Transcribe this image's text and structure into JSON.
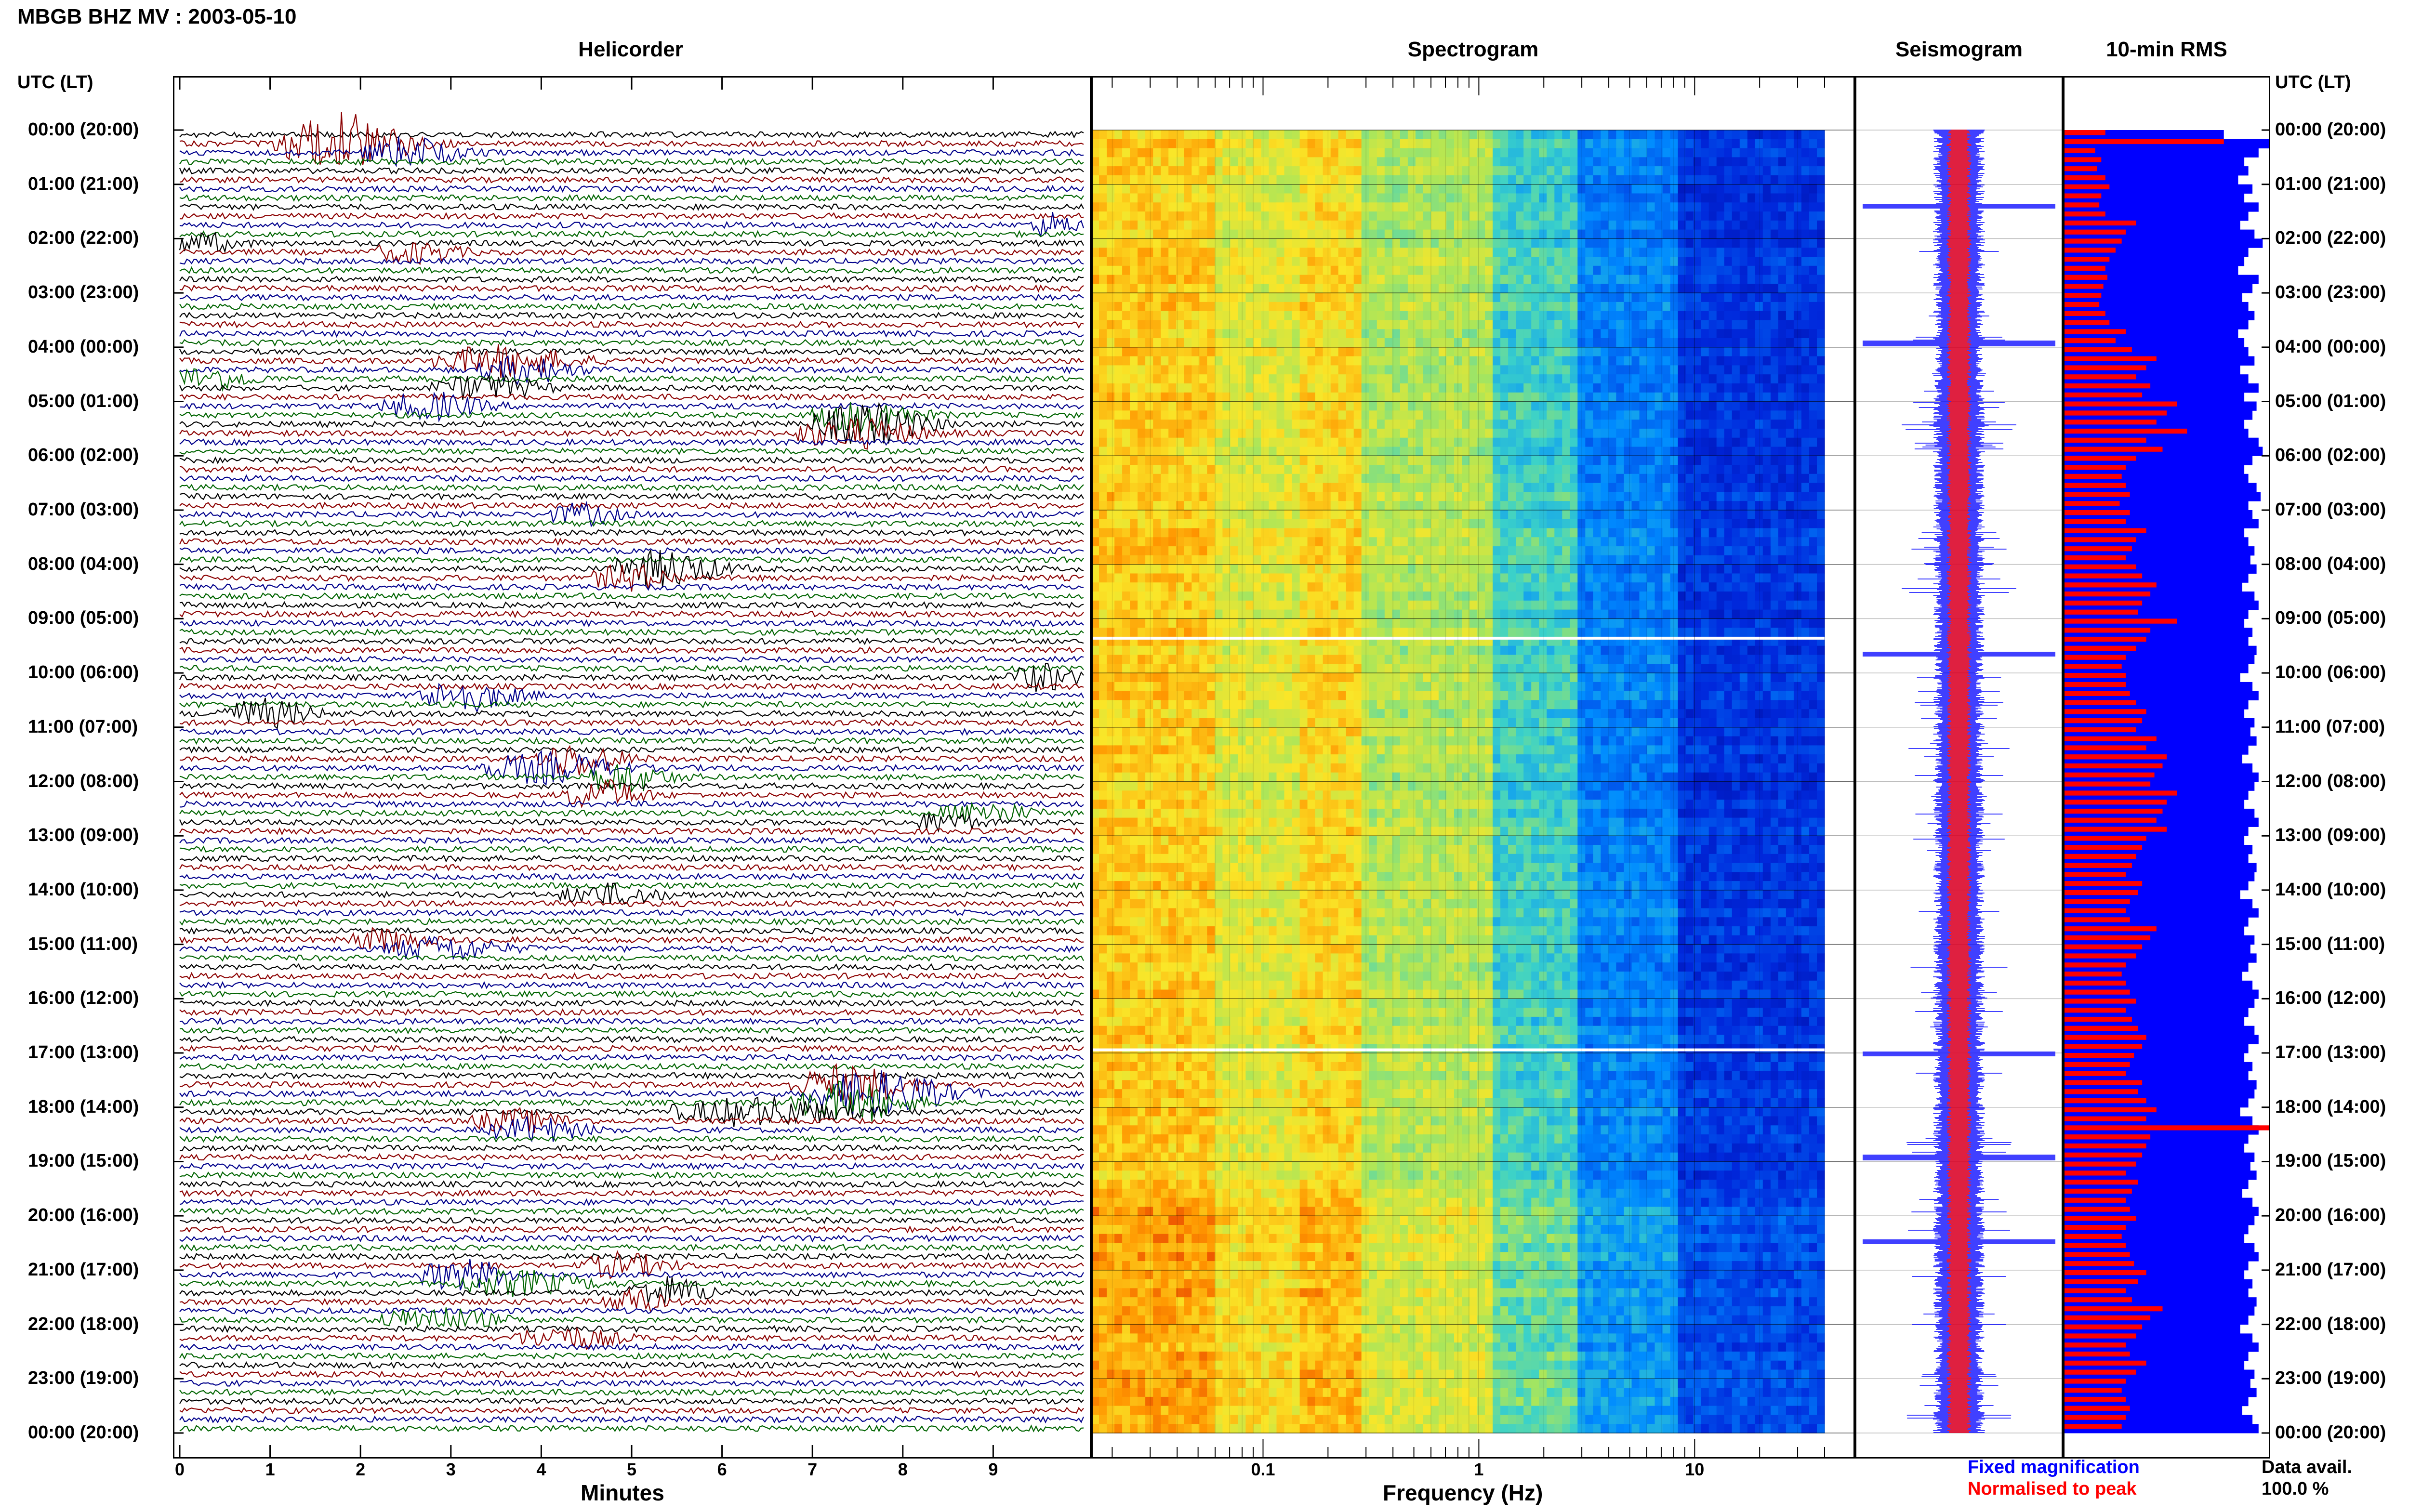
{
  "header": {
    "title": "MBGB BHZ MV : 2003-05-10"
  },
  "panels": {
    "helicorder": "Helicorder",
    "spectrogram": "Spectrogram",
    "seismogram": "Seismogram",
    "rms": "10-min RMS"
  },
  "time_axis": {
    "title_left": "UTC (LT)",
    "title_right": "UTC (LT)",
    "labels": [
      "00:00 (20:00)",
      "01:00 (21:00)",
      "02:00 (22:00)",
      "03:00 (23:00)",
      "04:00 (00:00)",
      "05:00 (01:00)",
      "06:00 (02:00)",
      "07:00 (03:00)",
      "08:00 (04:00)",
      "09:00 (05:00)",
      "10:00 (06:00)",
      "11:00 (07:00)",
      "12:00 (08:00)",
      "13:00 (09:00)",
      "14:00 (10:00)",
      "15:00 (11:00)",
      "16:00 (12:00)",
      "17:00 (13:00)",
      "18:00 (14:00)",
      "19:00 (15:00)",
      "20:00 (16:00)",
      "21:00 (17:00)",
      "22:00 (18:00)",
      "23:00 (19:00)",
      "00:00 (20:00)"
    ]
  },
  "helicorder_axis": {
    "xlabel": "Minutes",
    "ticks": [
      "0",
      "1",
      "2",
      "3",
      "4",
      "5",
      "6",
      "7",
      "8",
      "9"
    ],
    "trace_colors": [
      "#000000",
      "#8b0000",
      "#00008b",
      "#006400"
    ]
  },
  "spectrogram_axis": {
    "xlabel": "Frequency (Hz)",
    "ticks": [
      "0.1",
      "1",
      "10"
    ],
    "scale": "log"
  },
  "legend": {
    "fixed": "Fixed magnification",
    "normalised": "Normalised to peak",
    "fixed_color": "#0000ff",
    "normalised_color": "#ff0000"
  },
  "availability": {
    "label": "Data avail.",
    "value": "100.0 %"
  },
  "chart_data": {
    "type": "heatmap",
    "title": "MBGB BHZ MV : 2003-05-10",
    "rms_10min": {
      "interval_minutes": 10,
      "series": [
        {
          "name": "Fixed magnification",
          "color": "#0000ff",
          "values": [
            0.78,
            1.0,
            0.95,
            0.88,
            0.9,
            0.85,
            0.92,
            0.88,
            0.95,
            0.9,
            0.86,
            0.93,
            0.97,
            0.9,
            0.88,
            0.85,
            0.95,
            0.92,
            0.87,
            0.9,
            0.93,
            0.9,
            0.85,
            0.88,
            0.9,
            0.93,
            0.86,
            0.9,
            0.95,
            0.88,
            0.94,
            0.92,
            0.88,
            0.9,
            0.95,
            0.97,
            0.92,
            0.88,
            0.9,
            0.94,
            0.96,
            0.9,
            0.92,
            0.95,
            0.88,
            0.9,
            0.93,
            0.91,
            0.94,
            0.9,
            0.87,
            0.93,
            0.95,
            0.9,
            0.88,
            0.92,
            0.9,
            0.94,
            0.93,
            0.9,
            0.86,
            0.92,
            0.95,
            0.9,
            0.88,
            0.93,
            0.91,
            0.94,
            0.9,
            0.87,
            0.92,
            0.95,
            0.93,
            0.9,
            0.88,
            0.93,
            0.95,
            0.9,
            0.88,
            0.92,
            0.9,
            0.94,
            0.93,
            0.9,
            0.86,
            0.92,
            0.95,
            0.9,
            0.88,
            0.93,
            0.91,
            0.94,
            0.9,
            0.87,
            0.92,
            0.95,
            0.93,
            0.9,
            0.88,
            0.93,
            0.95,
            0.9,
            0.88,
            0.92,
            0.9,
            0.94,
            0.93,
            0.9,
            0.86,
            0.92,
            0.95,
            0.9,
            0.88,
            0.93,
            0.91,
            0.94,
            0.9,
            0.87,
            0.92,
            0.95,
            0.93,
            0.9,
            0.88,
            0.93,
            0.95,
            0.9,
            0.88,
            0.92,
            0.9,
            0.94,
            0.93,
            0.9,
            0.86,
            0.92,
            0.95,
            0.9,
            0.88,
            0.93,
            0.91,
            0.94,
            0.9,
            0.87,
            0.92,
            0.95
          ]
        },
        {
          "name": "Normalised to peak",
          "color": "#ff0000",
          "values": [
            0.2,
            0.78,
            0.15,
            0.18,
            0.16,
            0.2,
            0.22,
            0.18,
            0.17,
            0.2,
            0.35,
            0.3,
            0.28,
            0.25,
            0.22,
            0.2,
            0.21,
            0.19,
            0.18,
            0.17,
            0.2,
            0.22,
            0.3,
            0.25,
            0.33,
            0.45,
            0.4,
            0.35,
            0.42,
            0.38,
            0.55,
            0.5,
            0.45,
            0.6,
            0.4,
            0.48,
            0.35,
            0.3,
            0.28,
            0.3,
            0.32,
            0.27,
            0.32,
            0.3,
            0.4,
            0.35,
            0.33,
            0.3,
            0.35,
            0.38,
            0.45,
            0.42,
            0.38,
            0.36,
            0.55,
            0.42,
            0.4,
            0.35,
            0.3,
            0.28,
            0.3,
            0.3,
            0.32,
            0.35,
            0.4,
            0.38,
            0.35,
            0.45,
            0.4,
            0.5,
            0.48,
            0.44,
            0.42,
            0.55,
            0.5,
            0.48,
            0.45,
            0.5,
            0.4,
            0.38,
            0.35,
            0.33,
            0.3,
            0.38,
            0.36,
            0.32,
            0.3,
            0.32,
            0.45,
            0.42,
            0.38,
            0.35,
            0.3,
            0.28,
            0.3,
            0.32,
            0.35,
            0.3,
            0.33,
            0.36,
            0.4,
            0.38,
            0.34,
            0.32,
            0.3,
            0.38,
            0.36,
            0.4,
            0.45,
            0.4,
            1.0,
            0.42,
            0.4,
            0.38,
            0.35,
            0.3,
            0.36,
            0.33,
            0.3,
            0.32,
            0.35,
            0.3,
            0.28,
            0.3,
            0.32,
            0.34,
            0.4,
            0.36,
            0.3,
            0.33,
            0.48,
            0.42,
            0.38,
            0.35,
            0.3,
            0.32,
            0.4,
            0.35,
            0.3,
            0.28,
            0.3,
            0.32,
            0.3,
            0.28
          ]
        }
      ]
    }
  }
}
